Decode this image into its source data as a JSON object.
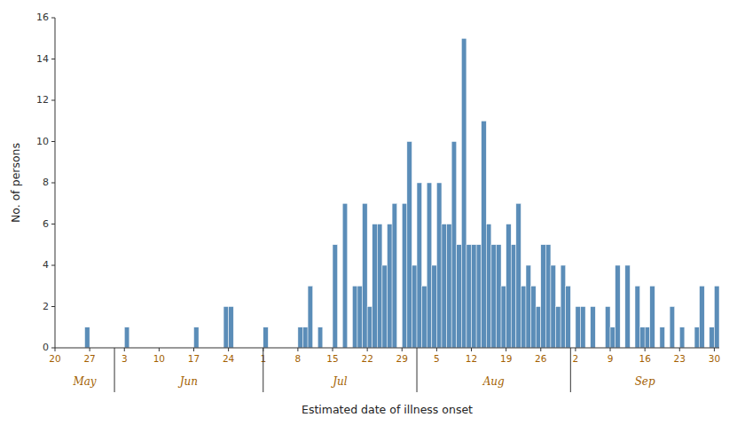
{
  "chart_data": {
    "type": "bar",
    "xlabel": "Estimated date of illness onset",
    "ylabel": "No. of persons",
    "color": "#5b8db8",
    "grid": false,
    "ylim": [
      0,
      16
    ],
    "yticks": [
      0,
      2,
      4,
      6,
      8,
      10,
      12,
      14,
      16
    ],
    "categories": [
      "20",
      null,
      null,
      null,
      null,
      null,
      null,
      "27",
      null,
      null,
      null,
      null,
      null,
      null,
      "3",
      null,
      null,
      null,
      null,
      null,
      null,
      "10",
      null,
      null,
      null,
      null,
      null,
      null,
      "17",
      null,
      null,
      null,
      null,
      null,
      null,
      "24",
      null,
      null,
      null,
      null,
      null,
      null,
      "1",
      null,
      null,
      null,
      null,
      null,
      null,
      "8",
      null,
      null,
      null,
      null,
      null,
      null,
      "15",
      null,
      null,
      null,
      null,
      null,
      null,
      "22",
      null,
      null,
      null,
      null,
      null,
      null,
      "29",
      null,
      null,
      null,
      null,
      null,
      null,
      "5",
      null,
      null,
      null,
      null,
      null,
      null,
      "12",
      null,
      null,
      null,
      null,
      null,
      null,
      "19",
      null,
      null,
      null,
      null,
      null,
      null,
      "26",
      null,
      null,
      null,
      null,
      null,
      null,
      "2",
      null,
      null,
      null,
      null,
      null,
      null,
      "9",
      null,
      null,
      null,
      null,
      null,
      null,
      "16",
      null,
      null,
      null,
      null,
      null,
      null,
      "23",
      null,
      null,
      null,
      null,
      null,
      null,
      "30"
    ],
    "values": [
      0,
      0,
      0,
      0,
      0,
      0,
      1,
      0,
      0,
      0,
      0,
      0,
      0,
      0,
      1,
      0,
      0,
      0,
      0,
      0,
      0,
      0,
      0,
      0,
      0,
      0,
      0,
      0,
      1,
      0,
      0,
      0,
      0,
      0,
      2,
      2,
      0,
      0,
      0,
      0,
      0,
      0,
      1,
      0,
      0,
      0,
      0,
      0,
      0,
      1,
      1,
      3,
      0,
      1,
      0,
      0,
      5,
      0,
      7,
      0,
      3,
      3,
      7,
      2,
      6,
      6,
      4,
      6,
      7,
      0,
      7,
      10,
      4,
      8,
      3,
      8,
      4,
      8,
      6,
      6,
      10,
      5,
      15,
      5,
      5,
      5,
      11,
      6,
      5,
      5,
      3,
      6,
      5,
      7,
      3,
      4,
      3,
      2,
      5,
      5,
      4,
      2,
      4,
      3,
      0,
      2,
      2,
      0,
      2,
      0,
      0,
      2,
      1,
      4,
      0,
      4,
      0,
      3,
      1,
      1,
      3,
      0,
      1,
      0,
      2,
      0,
      1,
      0,
      0,
      1,
      3,
      0,
      1,
      3
    ],
    "annotations": [
      {
        "text": "May",
        "start": 0,
        "end": 12
      },
      {
        "text": "Jun",
        "start": 12,
        "end": 42
      },
      {
        "text": "Jul",
        "start": 42,
        "end": 73
      },
      {
        "text": "Aug",
        "start": 73,
        "end": 104
      },
      {
        "text": "Sep",
        "start": 104,
        "end": 134
      }
    ]
  }
}
